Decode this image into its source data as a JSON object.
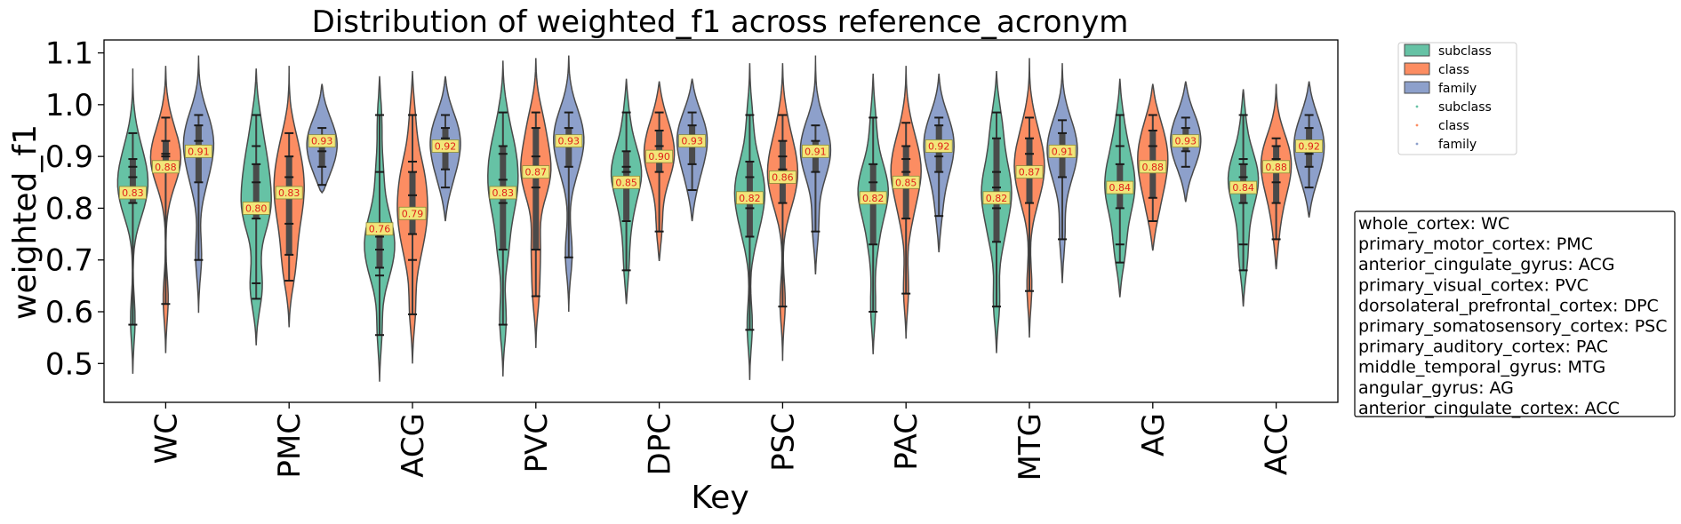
{
  "chart_data": {
    "type": "violin",
    "title": "Distribution of weighted_f1 across reference_acronym",
    "xlabel": "Key",
    "ylabel": "weighted_f1",
    "ylim": [
      0.425,
      1.125
    ],
    "yticks": [
      0.5,
      0.6,
      0.7,
      0.8,
      0.9,
      1.0,
      1.1
    ],
    "ytick_labels": [
      "0.5",
      "0.6",
      "0.7",
      "0.8",
      "0.9",
      "1.0",
      "1.1"
    ],
    "categories": [
      "WC",
      "PMC",
      "ACG",
      "PVC",
      "DPC",
      "PSC",
      "PAC",
      "MTG",
      "AG",
      "ACC"
    ],
    "grid": false,
    "legend_position": "top-right outside",
    "legend": [
      {
        "label": "subclass",
        "kind": "patch"
      },
      {
        "label": "class",
        "kind": "patch"
      },
      {
        "label": "family",
        "kind": "patch"
      },
      {
        "label": "subclass",
        "kind": "marker"
      },
      {
        "label": "class",
        "kind": "marker"
      },
      {
        "label": "family",
        "kind": "marker"
      }
    ],
    "series": [
      {
        "name": "subclass",
        "color": "#66c2a5",
        "means": [
          0.83,
          0.8,
          0.76,
          0.83,
          0.85,
          0.82,
          0.82,
          0.82,
          0.84,
          0.84
        ],
        "labels": [
          "0.83",
          "0.80",
          "0.76",
          "0.83",
          "0.85",
          "0.82",
          "0.82",
          "0.82",
          "0.84",
          "0.84"
        ],
        "ranges": [
          [
            0.48,
            1.07
          ],
          [
            0.535,
            1.07
          ],
          [
            0.465,
            1.055
          ],
          [
            0.475,
            1.085
          ],
          [
            0.615,
            1.05
          ],
          [
            0.468,
            1.08
          ],
          [
            0.518,
            1.06
          ],
          [
            0.52,
            1.065
          ],
          [
            0.628,
            1.05
          ],
          [
            0.61,
            1.03
          ]
        ],
        "points": [
          [
            0.575,
            0.81,
            0.82,
            0.86,
            0.88,
            0.895,
            0.945
          ],
          [
            0.625,
            0.655,
            0.78,
            0.8,
            0.85,
            0.885,
            0.92,
            0.98
          ],
          [
            0.555,
            0.67,
            0.685,
            0.72,
            0.745,
            0.77,
            0.87,
            0.98
          ],
          [
            0.575,
            0.72,
            0.81,
            0.855,
            0.905,
            0.92,
            0.985
          ],
          [
            0.68,
            0.775,
            0.85,
            0.87,
            0.88,
            0.91,
            0.985
          ],
          [
            0.565,
            0.745,
            0.8,
            0.83,
            0.86,
            0.89,
            0.98
          ],
          [
            0.6,
            0.73,
            0.81,
            0.83,
            0.85,
            0.885,
            0.975
          ],
          [
            0.61,
            0.735,
            0.8,
            0.84,
            0.87,
            0.935,
            0.985
          ],
          [
            0.695,
            0.73,
            0.8,
            0.83,
            0.85,
            0.885,
            0.92,
            0.98
          ],
          [
            0.68,
            0.73,
            0.81,
            0.845,
            0.86,
            0.885,
            0.895,
            0.98
          ]
        ]
      },
      {
        "name": "class",
        "color": "#fc8d62",
        "means": [
          0.88,
          0.83,
          0.79,
          0.87,
          0.9,
          0.86,
          0.85,
          0.87,
          0.88,
          0.88
        ],
        "labels": [
          "0.88",
          "0.83",
          "0.79",
          "0.87",
          "0.90",
          "0.86",
          "0.85",
          "0.87",
          "0.88",
          "0.88"
        ],
        "ranges": [
          [
            0.52,
            1.075
          ],
          [
            0.57,
            1.075
          ],
          [
            0.5,
            1.065
          ],
          [
            0.53,
            1.09
          ],
          [
            0.698,
            1.045
          ],
          [
            0.505,
            1.08
          ],
          [
            0.548,
            1.075
          ],
          [
            0.55,
            1.09
          ],
          [
            0.718,
            1.04
          ],
          [
            0.682,
            1.04
          ]
        ],
        "points": [
          [
            0.615,
            0.87,
            0.9,
            0.905,
            0.93,
            0.975
          ],
          [
            0.66,
            0.71,
            0.77,
            0.82,
            0.86,
            0.9,
            0.945
          ],
          [
            0.595,
            0.7,
            0.75,
            0.79,
            0.825,
            0.87,
            0.89,
            0.98
          ],
          [
            0.63,
            0.72,
            0.84,
            0.875,
            0.9,
            0.955,
            0.985
          ],
          [
            0.755,
            0.87,
            0.895,
            0.92,
            0.95,
            0.985
          ],
          [
            0.61,
            0.81,
            0.85,
            0.875,
            0.9,
            0.93,
            0.98
          ],
          [
            0.635,
            0.78,
            0.845,
            0.87,
            0.895,
            0.92,
            0.965
          ],
          [
            0.64,
            0.81,
            0.86,
            0.88,
            0.905,
            0.935,
            0.975
          ],
          [
            0.775,
            0.82,
            0.87,
            0.89,
            0.92,
            0.95,
            0.98
          ],
          [
            0.74,
            0.81,
            0.85,
            0.875,
            0.895,
            0.92,
            0.935
          ]
        ]
      },
      {
        "name": "family",
        "color": "#8da0cb",
        "means": [
          0.91,
          0.93,
          0.92,
          0.93,
          0.93,
          0.91,
          0.92,
          0.91,
          0.93,
          0.92
        ],
        "labels": [
          "0.91",
          "0.93",
          "0.92",
          "0.93",
          "0.93",
          "0.91",
          "0.92",
          "0.91",
          "0.93",
          "0.92"
        ],
        "ranges": [
          [
            0.598,
            1.095
          ],
          [
            0.83,
            1.04
          ],
          [
            0.775,
            1.055
          ],
          [
            0.6,
            1.095
          ],
          [
            0.775,
            1.05
          ],
          [
            0.672,
            1.095
          ],
          [
            0.715,
            1.06
          ],
          [
            0.655,
            1.08
          ],
          [
            0.812,
            1.045
          ],
          [
            0.782,
            1.045
          ]
        ],
        "points": [
          [
            0.7,
            0.85,
            0.905,
            0.93,
            0.96,
            0.98
          ],
          [
            0.845,
            0.88,
            0.91,
            0.935,
            0.955
          ],
          [
            0.84,
            0.875,
            0.915,
            0.935,
            0.955,
            0.98
          ],
          [
            0.705,
            0.88,
            0.93,
            0.955,
            0.985
          ],
          [
            0.835,
            0.885,
            0.92,
            0.94,
            0.96,
            0.985
          ],
          [
            0.755,
            0.87,
            0.905,
            0.93,
            0.96
          ],
          [
            0.785,
            0.87,
            0.9,
            0.93,
            0.96,
            0.975
          ],
          [
            0.74,
            0.86,
            0.9,
            0.915,
            0.945,
            0.97
          ],
          [
            0.88,
            0.91,
            0.93,
            0.955,
            0.975
          ],
          [
            0.84,
            0.88,
            0.905,
            0.93,
            0.955,
            0.98
          ]
        ]
      }
    ],
    "annotation_box": [
      "whole_cortex: WC",
      "primary_motor_cortex: PMC",
      "anterior_cingulate_gyrus: ACG",
      "primary_visual_cortex: PVC",
      "dorsolateral_prefrontal_cortex: DPC",
      "primary_somatosensory_cortex: PSC",
      "primary_auditory_cortex: PAC",
      "middle_temporal_gyrus: MTG",
      "angular_gyrus: AG",
      "anterior_cingulate_cortex: ACC"
    ]
  }
}
